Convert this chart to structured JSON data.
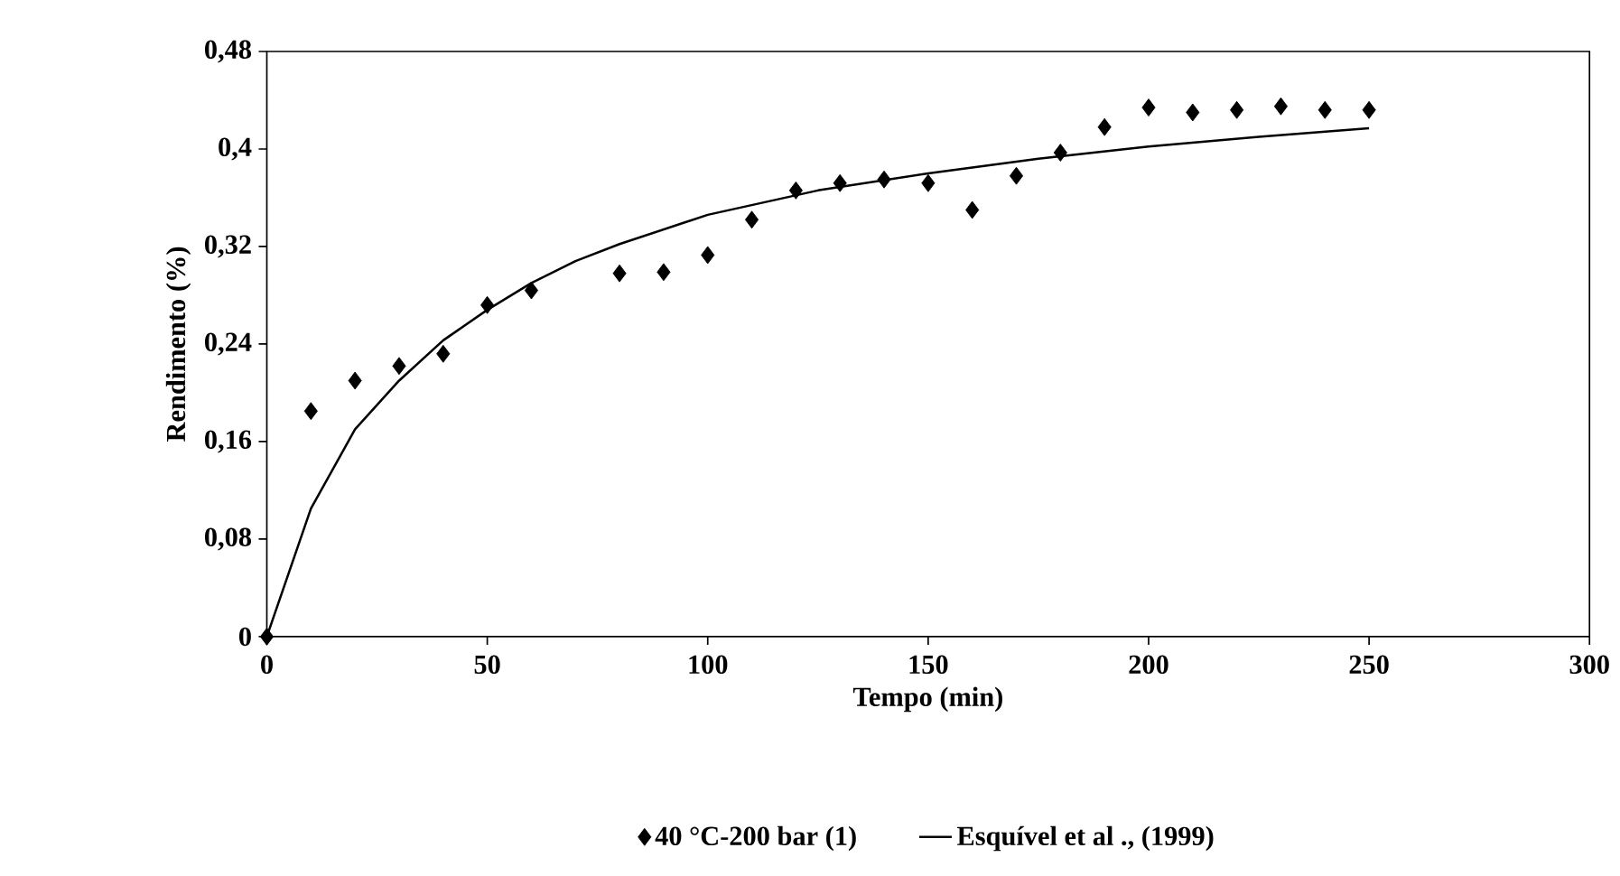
{
  "chart_data": {
    "type": "scatter",
    "xlabel": "Tempo (min)",
    "ylabel": "Rendimento (%)",
    "xlim": [
      0,
      300
    ],
    "xticks": [
      0,
      50,
      100,
      150,
      200,
      250,
      300
    ],
    "ylim": [
      0,
      0.48
    ],
    "yticks": [
      {
        "value": 0,
        "label": "0"
      },
      {
        "value": 0.08,
        "label": "0,08"
      },
      {
        "value": 0.16,
        "label": "0,16"
      },
      {
        "value": 0.24,
        "label": "0,24"
      },
      {
        "value": 0.32,
        "label": "0,32"
      },
      {
        "value": 0.4,
        "label": "0,4"
      },
      {
        "value": 0.48,
        "label": "0,48"
      }
    ],
    "grid": false,
    "legend": "bottom",
    "series": [
      {
        "name": "40 °C-200 bar (1)",
        "marker": "diamond",
        "color": "#000000",
        "x": [
          0,
          10,
          20,
          30,
          40,
          50,
          60,
          80,
          90,
          100,
          110,
          120,
          130,
          140,
          150,
          160,
          170,
          180,
          190,
          200,
          210,
          220,
          230,
          240,
          250
        ],
        "values": [
          0,
          0.185,
          0.21,
          0.222,
          0.232,
          0.272,
          0.284,
          0.298,
          0.299,
          0.313,
          0.342,
          0.366,
          0.372,
          0.375,
          0.372,
          0.35,
          0.378,
          0.397,
          0.418,
          0.434,
          0.43,
          0.432,
          0.435,
          0.432,
          0.432
        ]
      },
      {
        "name": "Esquível et al ., (1999)",
        "type": "line",
        "marker": "none",
        "line_style": "solid",
        "color": "#000000",
        "x": [
          0,
          10,
          20,
          30,
          40,
          50,
          60,
          70,
          80,
          100,
          125,
          150,
          175,
          200,
          225,
          250
        ],
        "values": [
          0,
          0.105,
          0.17,
          0.21,
          0.243,
          0.268,
          0.29,
          0.308,
          0.322,
          0.346,
          0.366,
          0.38,
          0.392,
          0.402,
          0.41,
          0.417
        ]
      }
    ]
  }
}
